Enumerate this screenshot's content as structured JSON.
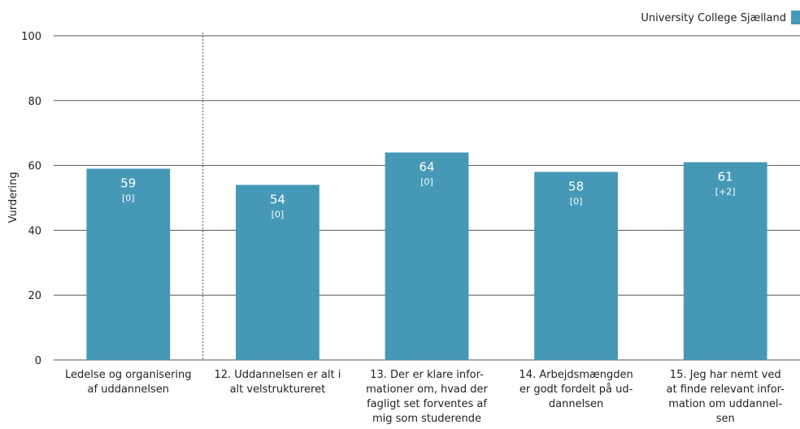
{
  "chart_data": {
    "type": "bar",
    "legend": {
      "label": "University College Sjælland",
      "position": "top-right"
    },
    "ylabel": "Vurdering",
    "ylim": [
      0,
      100
    ],
    "yticks": [
      0,
      20,
      40,
      60,
      80,
      100
    ],
    "grid": true,
    "bar_color": "#4699b6",
    "categories": [
      [
        "Ledelse og organisering",
        "af uddannelsen"
      ],
      [
        "12. Uddannelsen er alt i",
        "alt velstruktureret"
      ],
      [
        "13. Der er klare infor-",
        "mationer om, hvad der",
        "fagligt set forventes af",
        "mig som studerende"
      ],
      [
        "14. Arbejdsmængden",
        "er godt fordelt på ud-",
        "dannelsen"
      ],
      [
        "15. Jeg har nemt ved",
        "at finde relevant infor-",
        "mation om uddannel-",
        "sen"
      ]
    ],
    "values": [
      59,
      54,
      64,
      58,
      61
    ],
    "changes": [
      "[0]",
      "[0]",
      "[0]",
      "[0]",
      "[+2]"
    ],
    "separator_after_index": 0
  }
}
